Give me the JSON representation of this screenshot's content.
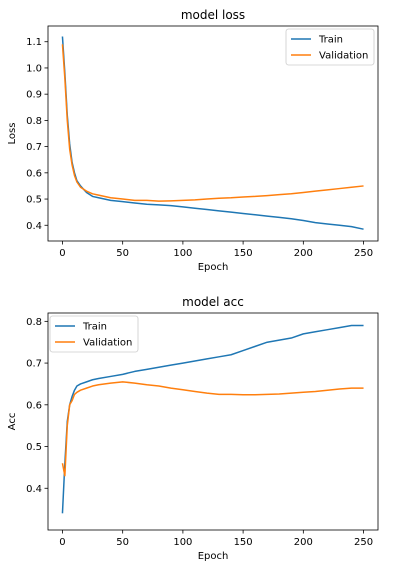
{
  "colors": {
    "train": "#1f77b4",
    "validation": "#ff7f0e"
  },
  "chart_data": [
    {
      "type": "line",
      "title": "model loss",
      "xlabel": "Epoch",
      "ylabel": "Loss",
      "xlim": [
        -12,
        262
      ],
      "ylim": [
        0.34,
        1.16
      ],
      "xticks": [
        0,
        50,
        100,
        150,
        200,
        250
      ],
      "yticks": [
        0.4,
        0.5,
        0.6,
        0.7,
        0.8,
        0.9,
        1.0,
        1.1
      ],
      "ytick_labels": [
        "0.4",
        "0.5",
        "0.6",
        "0.7",
        "0.8",
        "0.9",
        "1.0",
        "1.1"
      ],
      "grid": false,
      "legend_position": "top-right",
      "series": [
        {
          "name": "Train",
          "x": [
            0,
            2,
            4,
            6,
            8,
            10,
            12,
            15,
            20,
            25,
            30,
            40,
            50,
            60,
            70,
            80,
            90,
            100,
            110,
            120,
            130,
            140,
            150,
            160,
            170,
            180,
            190,
            200,
            210,
            220,
            230,
            240,
            250
          ],
          "y": [
            1.12,
            0.98,
            0.82,
            0.71,
            0.64,
            0.6,
            0.57,
            0.55,
            0.525,
            0.51,
            0.505,
            0.495,
            0.49,
            0.485,
            0.48,
            0.478,
            0.475,
            0.47,
            0.465,
            0.46,
            0.455,
            0.45,
            0.445,
            0.44,
            0.435,
            0.43,
            0.425,
            0.418,
            0.41,
            0.405,
            0.4,
            0.395,
            0.385
          ]
        },
        {
          "name": "Validation",
          "x": [
            0,
            2,
            4,
            6,
            8,
            10,
            12,
            15,
            20,
            25,
            30,
            40,
            50,
            60,
            70,
            80,
            90,
            100,
            110,
            120,
            130,
            140,
            150,
            160,
            170,
            180,
            190,
            200,
            210,
            220,
            230,
            240,
            250
          ],
          "y": [
            1.09,
            0.96,
            0.8,
            0.69,
            0.63,
            0.59,
            0.565,
            0.545,
            0.53,
            0.52,
            0.515,
            0.505,
            0.5,
            0.495,
            0.495,
            0.492,
            0.493,
            0.495,
            0.497,
            0.5,
            0.503,
            0.505,
            0.508,
            0.51,
            0.513,
            0.517,
            0.52,
            0.525,
            0.53,
            0.535,
            0.54,
            0.545,
            0.55
          ]
        }
      ]
    },
    {
      "type": "line",
      "title": "model acc",
      "xlabel": "Epoch",
      "ylabel": "Acc",
      "xlim": [
        -12,
        262
      ],
      "ylim": [
        0.3,
        0.82
      ],
      "xticks": [
        0,
        50,
        100,
        150,
        200,
        250
      ],
      "yticks": [
        0.4,
        0.5,
        0.6,
        0.7,
        0.8
      ],
      "ytick_labels": [
        "0.4",
        "0.5",
        "0.6",
        "0.7",
        "0.8"
      ],
      "grid": false,
      "legend_position": "top-left",
      "series": [
        {
          "name": "Train",
          "x": [
            0,
            2,
            4,
            6,
            8,
            10,
            12,
            15,
            20,
            25,
            30,
            40,
            50,
            60,
            70,
            80,
            90,
            100,
            110,
            120,
            130,
            140,
            150,
            160,
            170,
            180,
            190,
            200,
            210,
            220,
            230,
            240,
            250
          ],
          "y": [
            0.34,
            0.46,
            0.56,
            0.6,
            0.62,
            0.635,
            0.645,
            0.65,
            0.655,
            0.66,
            0.663,
            0.668,
            0.673,
            0.68,
            0.685,
            0.69,
            0.695,
            0.7,
            0.705,
            0.71,
            0.715,
            0.72,
            0.73,
            0.74,
            0.75,
            0.755,
            0.76,
            0.77,
            0.775,
            0.78,
            0.785,
            0.79,
            0.79
          ]
        },
        {
          "name": "Validation",
          "x": [
            0,
            2,
            4,
            6,
            8,
            10,
            12,
            15,
            20,
            25,
            30,
            40,
            50,
            60,
            70,
            80,
            90,
            100,
            110,
            120,
            130,
            140,
            150,
            160,
            170,
            180,
            190,
            200,
            210,
            220,
            230,
            240,
            250
          ],
          "y": [
            0.46,
            0.43,
            0.55,
            0.6,
            0.61,
            0.625,
            0.63,
            0.635,
            0.64,
            0.645,
            0.648,
            0.652,
            0.655,
            0.652,
            0.648,
            0.645,
            0.64,
            0.636,
            0.632,
            0.628,
            0.625,
            0.625,
            0.624,
            0.624,
            0.625,
            0.626,
            0.628,
            0.63,
            0.632,
            0.635,
            0.638,
            0.64,
            0.64
          ]
        }
      ]
    }
  ]
}
